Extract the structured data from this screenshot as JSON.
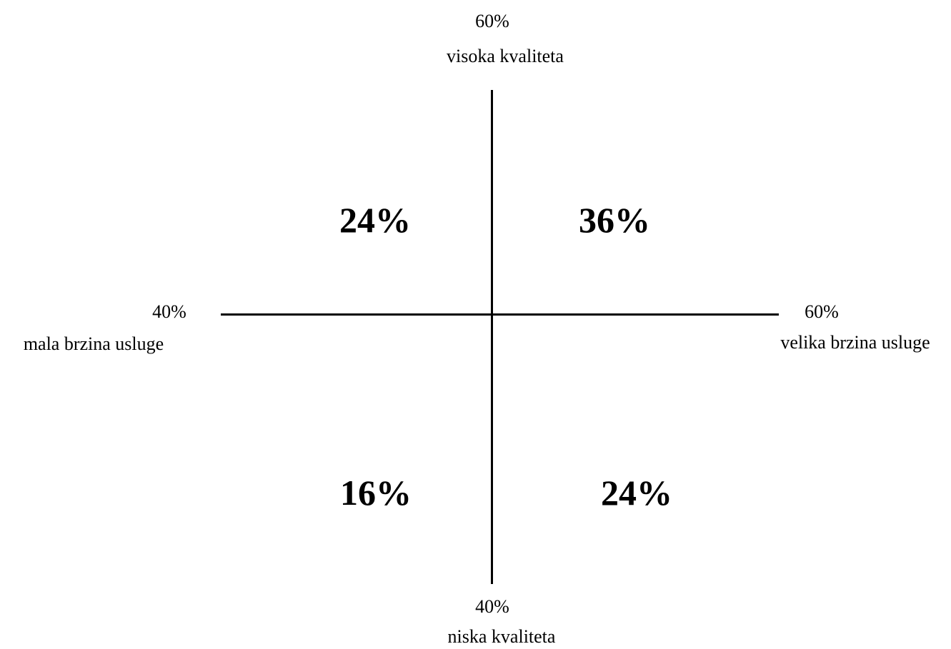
{
  "axes": {
    "top": {
      "percent": "60%",
      "label": "visoka kvaliteta"
    },
    "bottom": {
      "percent": "40%",
      "label": "niska kvaliteta"
    },
    "left": {
      "percent": "40%",
      "label": "mala brzina usluge"
    },
    "right": {
      "percent": "60%",
      "label": "velika brzina usluge"
    }
  },
  "quadrants": {
    "top_left": "24%",
    "top_right": "36%",
    "bottom_left": "16%",
    "bottom_right": "24%"
  }
}
